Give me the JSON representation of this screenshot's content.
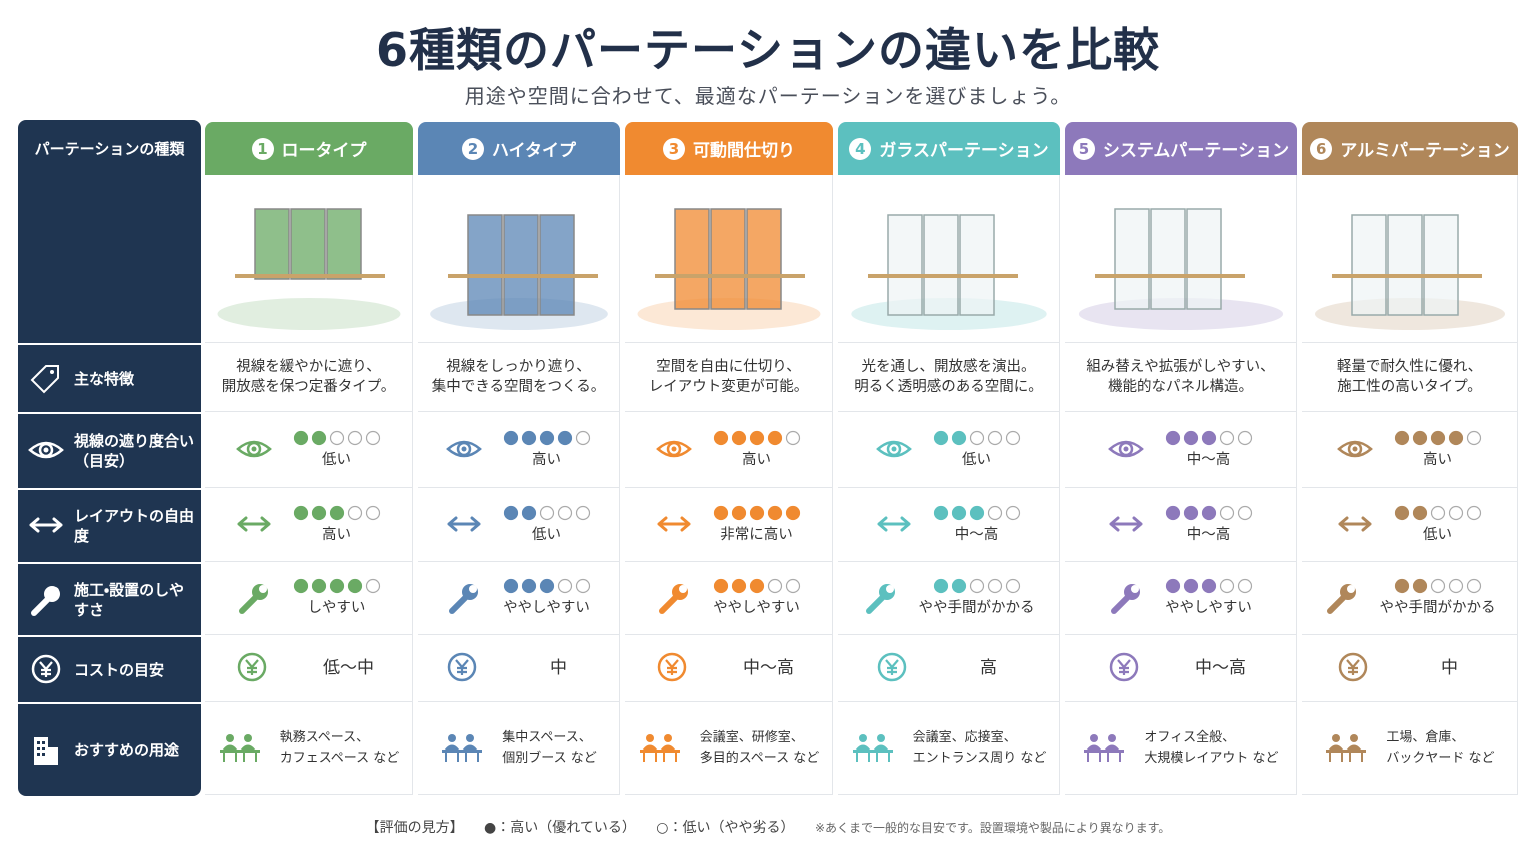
{
  "header": {
    "title": "6種類のパーテーションの違いを比較",
    "subtitle": "用途や空間に合わせて、最適なパーテーションを選びましょう。"
  },
  "table": {
    "corner": "パーテーションの種類",
    "row_labels": [
      "主な特徴",
      "視線の遮り度合い（目安）",
      "レイアウトの自由度",
      "施工・設置のしやすさ",
      "コストの目安",
      "おすすめの用途"
    ],
    "dots": 5,
    "columns": [
      {
        "number": "1",
        "name": "ロータイプ",
        "color": "#6aaa64",
        "feature": [
          "視線を緩やかに遮り、",
          "開放感を保つ定番タイプ。"
        ],
        "visibility": {
          "rating": 2,
          "label": "低い"
        },
        "layout": {
          "rating": 3,
          "label": "高い"
        },
        "install": {
          "rating": 4,
          "label": "しやすい"
        },
        "cost": "低〜中",
        "usage": [
          "執務スペース、",
          "カフェスペース など"
        ]
      },
      {
        "number": "2",
        "name": "ハイタイプ",
        "color": "#5b86b5",
        "feature": [
          "視線をしっかり遮り、",
          "集中できる空間をつくる。"
        ],
        "visibility": {
          "rating": 4,
          "label": "高い"
        },
        "layout": {
          "rating": 2,
          "label": "低い"
        },
        "install": {
          "rating": 3,
          "label": "ややしやすい"
        },
        "cost": "中",
        "usage": [
          "集中スペース、",
          "個別ブース など"
        ]
      },
      {
        "number": "3",
        "name": "可動間仕切り",
        "color": "#f08a30",
        "feature": [
          "空間を自由に仕切り、",
          "レイアウト変更が可能。"
        ],
        "visibility": {
          "rating": 4,
          "label": "高い"
        },
        "layout": {
          "rating": 5,
          "label": "非常に高い"
        },
        "install": {
          "rating": 3,
          "label": "ややしやすい"
        },
        "cost": "中〜高",
        "usage": [
          "会議室、研修室、",
          "多目的スペース など"
        ]
      },
      {
        "number": "4",
        "name": "ガラスパーテーション",
        "color": "#5cc0bf",
        "feature": [
          "光を通し、開放感を演出。",
          "明るく透明感のある空間に。"
        ],
        "visibility": {
          "rating": 2,
          "label": "低い"
        },
        "layout": {
          "rating": 3,
          "label": "中〜高"
        },
        "install": {
          "rating": 2,
          "label": "やや手間がかかる"
        },
        "cost": "高",
        "usage": [
          "会議室、応接室、",
          "エントランス周り など"
        ]
      },
      {
        "number": "5",
        "name": "システムパーテーション",
        "color": "#8d79bb",
        "feature": [
          "組み替えや拡張がしやすい、",
          "機能的なパネル構造。"
        ],
        "visibility": {
          "rating": 3,
          "label": "中〜高"
        },
        "layout": {
          "rating": 3,
          "label": "中〜高"
        },
        "install": {
          "rating": 3,
          "label": "ややしやすい"
        },
        "cost": "中〜高",
        "usage": [
          "オフィス全般、",
          "大規模レイアウト など"
        ]
      },
      {
        "number": "6",
        "name": "アルミパーテーション",
        "color": "#b0875a",
        "feature": [
          "軽量で耐久性に優れ、",
          "施工性の高いタイプ。"
        ],
        "visibility": {
          "rating": 4,
          "label": "高い"
        },
        "layout": {
          "rating": 2,
          "label": "低い"
        },
        "install": {
          "rating": 2,
          "label": "やや手間がかかる"
        },
        "cost": "中",
        "usage": [
          "工場、倉庫、",
          "バックヤード など"
        ]
      }
    ]
  },
  "footer": {
    "legend": "【評価の見方】",
    "filled": "●：高い（優れている）",
    "empty": "○：低い（やや劣る）",
    "note": "※あくまで一般的な目安です。設置環境や製品により異なります。"
  }
}
